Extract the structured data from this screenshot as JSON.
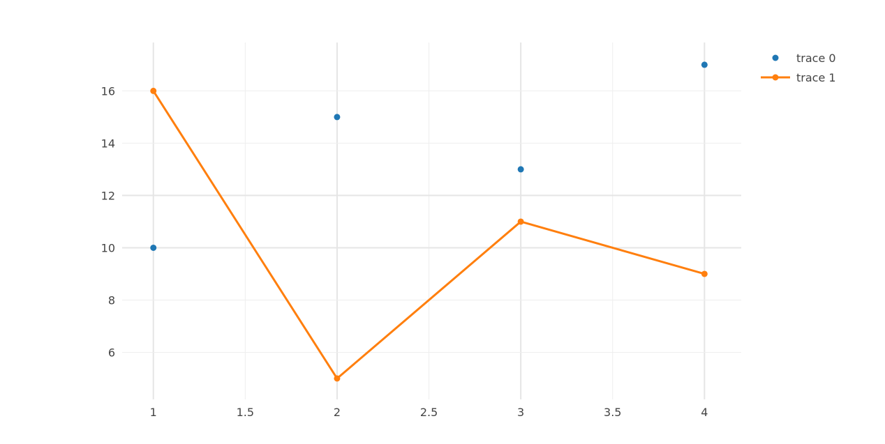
{
  "chart_data": {
    "type": "line",
    "xlim": [
      0.83,
      4.2
    ],
    "ylim": [
      4.2,
      17.85
    ],
    "x_ticks": [
      1,
      1.5,
      2,
      2.5,
      3,
      3.5,
      4
    ],
    "x_tick_labels": [
      "1",
      "1.5",
      "2",
      "2.5",
      "3",
      "3.5",
      "4"
    ],
    "y_ticks": [
      6,
      8,
      10,
      12,
      14,
      16
    ],
    "y_tick_labels": [
      "6",
      "8",
      "10",
      "12",
      "14",
      "16"
    ],
    "grid": true,
    "legend_position": "top-right",
    "series": [
      {
        "name": "trace 0",
        "mode": "markers",
        "color": "#1f77b4",
        "x": [
          1,
          2,
          3,
          4
        ],
        "y": [
          10,
          15,
          13,
          17
        ]
      },
      {
        "name": "trace 1",
        "mode": "lines+markers",
        "color": "#ff7f0e",
        "x": [
          1,
          2,
          3,
          4
        ],
        "y": [
          16,
          5,
          11,
          9
        ]
      }
    ]
  }
}
